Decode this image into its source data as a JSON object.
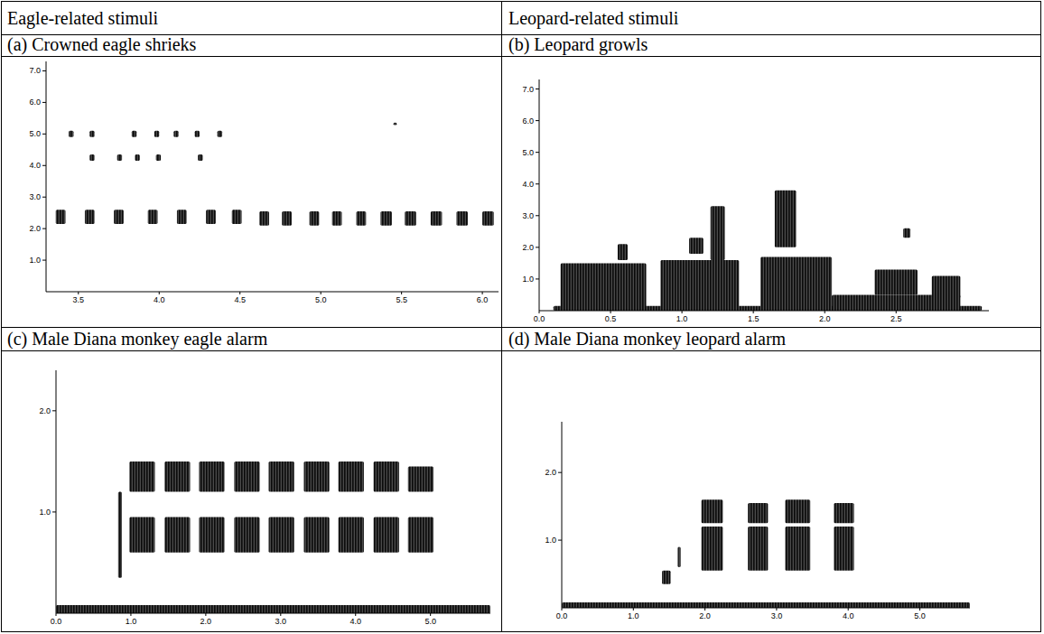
{
  "header": {
    "columns": [
      "Eagle-related stimuli",
      "Leopard-related stimuli"
    ]
  },
  "chart_data": [
    {
      "type": "spectrogram",
      "title": "(a) Crowned eagle shrieks",
      "xlim": [
        3.3,
        6.1
      ],
      "xticks": [
        3.5,
        {
          "value": 4,
          "label": "4.0"
        },
        4.5,
        {
          "value": 5,
          "label": "5.0"
        },
        5.5,
        {
          "value": 6,
          "label": "6.0"
        }
      ],
      "ylim": [
        0,
        7.3
      ],
      "yticks": [
        {
          "value": 1,
          "label": "1.0"
        },
        {
          "value": 2,
          "label": "2.0"
        },
        {
          "value": 3,
          "label": "3.0"
        },
        {
          "value": 4,
          "label": "4.0"
        },
        {
          "value": 5,
          "label": "5.0"
        },
        {
          "value": 6,
          "label": "6.0"
        },
        {
          "value": 7,
          "label": "7.0"
        }
      ],
      "units": [
        {
          "start": 3.36,
          "end": 3.42,
          "low": 2.15,
          "high": 2.6
        },
        {
          "start": 3.54,
          "end": 3.6,
          "low": 2.15,
          "high": 2.6
        },
        {
          "start": 3.72,
          "end": 3.78,
          "low": 2.15,
          "high": 2.6
        },
        {
          "start": 3.93,
          "end": 3.99,
          "low": 2.15,
          "high": 2.6
        },
        {
          "start": 4.11,
          "end": 4.17,
          "low": 2.15,
          "high": 2.6
        },
        {
          "start": 4.29,
          "end": 4.35,
          "low": 2.15,
          "high": 2.6
        },
        {
          "start": 4.45,
          "end": 4.51,
          "low": 2.15,
          "high": 2.6
        },
        {
          "start": 4.62,
          "end": 4.68,
          "low": 2.1,
          "high": 2.55
        },
        {
          "start": 4.76,
          "end": 4.82,
          "low": 2.1,
          "high": 2.55
        },
        {
          "start": 4.93,
          "end": 4.99,
          "low": 2.1,
          "high": 2.55
        },
        {
          "start": 5.07,
          "end": 5.13,
          "low": 2.1,
          "high": 2.55
        },
        {
          "start": 5.22,
          "end": 5.28,
          "low": 2.1,
          "high": 2.55
        },
        {
          "start": 5.37,
          "end": 5.44,
          "low": 2.1,
          "high": 2.55
        },
        {
          "start": 5.52,
          "end": 5.59,
          "low": 2.1,
          "high": 2.55
        },
        {
          "start": 5.68,
          "end": 5.75,
          "low": 2.1,
          "high": 2.55
        },
        {
          "start": 5.84,
          "end": 5.91,
          "low": 2.1,
          "high": 2.55
        },
        {
          "start": 6.0,
          "end": 6.07,
          "low": 2.1,
          "high": 2.55
        },
        {
          "start": 3.44,
          "end": 3.47,
          "low": 4.9,
          "high": 5.1
        },
        {
          "start": 3.57,
          "end": 3.6,
          "low": 4.9,
          "high": 5.1
        },
        {
          "start": 3.83,
          "end": 3.86,
          "low": 4.9,
          "high": 5.1
        },
        {
          "start": 3.97,
          "end": 4.0,
          "low": 4.9,
          "high": 5.1
        },
        {
          "start": 4.09,
          "end": 4.12,
          "low": 4.9,
          "high": 5.1
        },
        {
          "start": 4.22,
          "end": 4.25,
          "low": 4.9,
          "high": 5.1
        },
        {
          "start": 4.36,
          "end": 4.39,
          "low": 4.9,
          "high": 5.1
        },
        {
          "start": 3.57,
          "end": 3.6,
          "low": 4.15,
          "high": 4.35
        },
        {
          "start": 3.74,
          "end": 3.77,
          "low": 4.15,
          "high": 4.35
        },
        {
          "start": 3.85,
          "end": 3.88,
          "low": 4.15,
          "high": 4.35
        },
        {
          "start": 3.98,
          "end": 4.01,
          "low": 4.15,
          "high": 4.35
        },
        {
          "start": 4.24,
          "end": 4.27,
          "low": 4.15,
          "high": 4.35
        },
        {
          "start": 5.45,
          "end": 5.47,
          "low": 5.28,
          "high": 5.36
        }
      ]
    },
    {
      "type": "spectrogram",
      "title": "(b) Leopard growls",
      "xlim": [
        0,
        3.15
      ],
      "xticks": [
        {
          "value": 0,
          "label": "0.0"
        },
        0.5,
        {
          "value": 1,
          "label": "1.0"
        },
        1.5,
        {
          "value": 2,
          "label": "2.0"
        },
        2.5
      ],
      "ylim": [
        0,
        7.3
      ],
      "yticks": [
        {
          "value": 1,
          "label": "1.0"
        },
        {
          "value": 2,
          "label": "2.0"
        },
        {
          "value": 3,
          "label": "3.0"
        },
        {
          "value": 4,
          "label": "4.0"
        },
        {
          "value": 5,
          "label": "5.0"
        },
        {
          "value": 6,
          "label": "6.0"
        },
        {
          "value": 7,
          "label": "7.0"
        }
      ],
      "units": [
        {
          "start": 0.15,
          "end": 0.75,
          "low": 0,
          "high": 1.5
        },
        {
          "start": 0.85,
          "end": 1.4,
          "low": 0,
          "high": 1.6
        },
        {
          "start": 1.2,
          "end": 1.3,
          "low": 1.6,
          "high": 3.3
        },
        {
          "start": 1.05,
          "end": 1.15,
          "low": 1.8,
          "high": 2.3
        },
        {
          "start": 0.55,
          "end": 0.62,
          "low": 1.6,
          "high": 2.1
        },
        {
          "start": 1.55,
          "end": 2.05,
          "low": 0,
          "high": 1.7
        },
        {
          "start": 1.65,
          "end": 1.8,
          "low": 2.0,
          "high": 3.8
        },
        {
          "start": 2.05,
          "end": 2.95,
          "low": 0,
          "high": 0.5
        },
        {
          "start": 2.35,
          "end": 2.65,
          "low": 0.5,
          "high": 1.3
        },
        {
          "start": 2.55,
          "end": 2.6,
          "low": 2.3,
          "high": 2.6
        },
        {
          "start": 2.75,
          "end": 2.95,
          "low": 0.4,
          "high": 1.1
        },
        {
          "start": 0.1,
          "end": 3.1,
          "low": 0,
          "high": 0.15
        }
      ]
    },
    {
      "type": "spectrogram",
      "title": "(c) Male Diana monkey eagle alarm",
      "xlim": [
        0,
        5.8
      ],
      "xticks": [
        {
          "value": 0,
          "label": "0.0"
        },
        {
          "value": 1,
          "label": "1.0"
        },
        {
          "value": 2,
          "label": "2.0"
        },
        {
          "value": 3,
          "label": "3.0"
        },
        {
          "value": 4,
          "label": "4.0"
        },
        {
          "value": 5,
          "label": "5.0"
        }
      ],
      "ylim": [
        0,
        2.4
      ],
      "yticks": [
        {
          "value": 1,
          "label": "1.0"
        },
        {
          "value": 2,
          "label": "2.0"
        }
      ],
      "units": [
        {
          "start": 0.83,
          "end": 0.88,
          "low": 0.35,
          "high": 1.2
        },
        {
          "start": 0.98,
          "end": 1.32,
          "low": 0.6,
          "high": 0.95
        },
        {
          "start": 0.98,
          "end": 1.32,
          "low": 1.2,
          "high": 1.5
        },
        {
          "start": 1.45,
          "end": 1.79,
          "low": 0.6,
          "high": 0.95
        },
        {
          "start": 1.45,
          "end": 1.79,
          "low": 1.2,
          "high": 1.5
        },
        {
          "start": 1.91,
          "end": 2.25,
          "low": 0.6,
          "high": 0.95
        },
        {
          "start": 1.91,
          "end": 2.25,
          "low": 1.2,
          "high": 1.5
        },
        {
          "start": 2.38,
          "end": 2.72,
          "low": 0.6,
          "high": 0.95
        },
        {
          "start": 2.38,
          "end": 2.72,
          "low": 1.2,
          "high": 1.5
        },
        {
          "start": 2.84,
          "end": 3.18,
          "low": 0.6,
          "high": 0.95
        },
        {
          "start": 2.84,
          "end": 3.18,
          "low": 1.2,
          "high": 1.5
        },
        {
          "start": 3.31,
          "end": 3.65,
          "low": 0.6,
          "high": 0.95
        },
        {
          "start": 3.31,
          "end": 3.65,
          "low": 1.2,
          "high": 1.5
        },
        {
          "start": 3.77,
          "end": 4.11,
          "low": 0.6,
          "high": 0.95
        },
        {
          "start": 3.77,
          "end": 4.11,
          "low": 1.2,
          "high": 1.5
        },
        {
          "start": 4.24,
          "end": 4.58,
          "low": 0.6,
          "high": 0.95
        },
        {
          "start": 4.24,
          "end": 4.58,
          "low": 1.2,
          "high": 1.5
        },
        {
          "start": 4.7,
          "end": 5.04,
          "low": 0.6,
          "high": 0.95
        },
        {
          "start": 4.7,
          "end": 5.04,
          "low": 1.2,
          "high": 1.45
        },
        {
          "start": 0,
          "end": 5.8,
          "low": 0,
          "high": 0.08
        }
      ]
    },
    {
      "type": "spectrogram",
      "title": "(d) Male Diana monkey leopard alarm",
      "xlim": [
        0,
        5.7
      ],
      "xticks": [
        {
          "value": 0,
          "label": "0.0"
        },
        {
          "value": 1,
          "label": "1.0"
        },
        {
          "value": 2,
          "label": "2.0"
        },
        {
          "value": 3,
          "label": "3.0"
        },
        {
          "value": 4,
          "label": "4.0"
        },
        {
          "value": 5,
          "label": "5.0"
        }
      ],
      "ylim": [
        0,
        2.75
      ],
      "yticks": [
        {
          "value": 1,
          "label": "1.0"
        },
        {
          "value": 2,
          "label": "2.0"
        }
      ],
      "units": [
        {
          "start": 1.4,
          "end": 1.52,
          "low": 0.35,
          "high": 0.55
        },
        {
          "start": 1.62,
          "end": 1.66,
          "low": 0.6,
          "high": 0.9
        },
        {
          "start": 1.95,
          "end": 2.25,
          "low": 0.55,
          "high": 1.2
        },
        {
          "start": 1.95,
          "end": 2.25,
          "low": 1.25,
          "high": 1.6
        },
        {
          "start": 2.6,
          "end": 2.88,
          "low": 0.55,
          "high": 1.2
        },
        {
          "start": 2.6,
          "end": 2.88,
          "low": 1.25,
          "high": 1.55
        },
        {
          "start": 3.12,
          "end": 3.47,
          "low": 0.55,
          "high": 1.2
        },
        {
          "start": 3.12,
          "end": 3.47,
          "low": 1.25,
          "high": 1.6
        },
        {
          "start": 3.8,
          "end": 4.08,
          "low": 0.55,
          "high": 1.2
        },
        {
          "start": 3.8,
          "end": 4.08,
          "low": 1.25,
          "high": 1.55
        },
        {
          "start": 0,
          "end": 5.7,
          "low": 0,
          "high": 0.08
        }
      ]
    }
  ]
}
